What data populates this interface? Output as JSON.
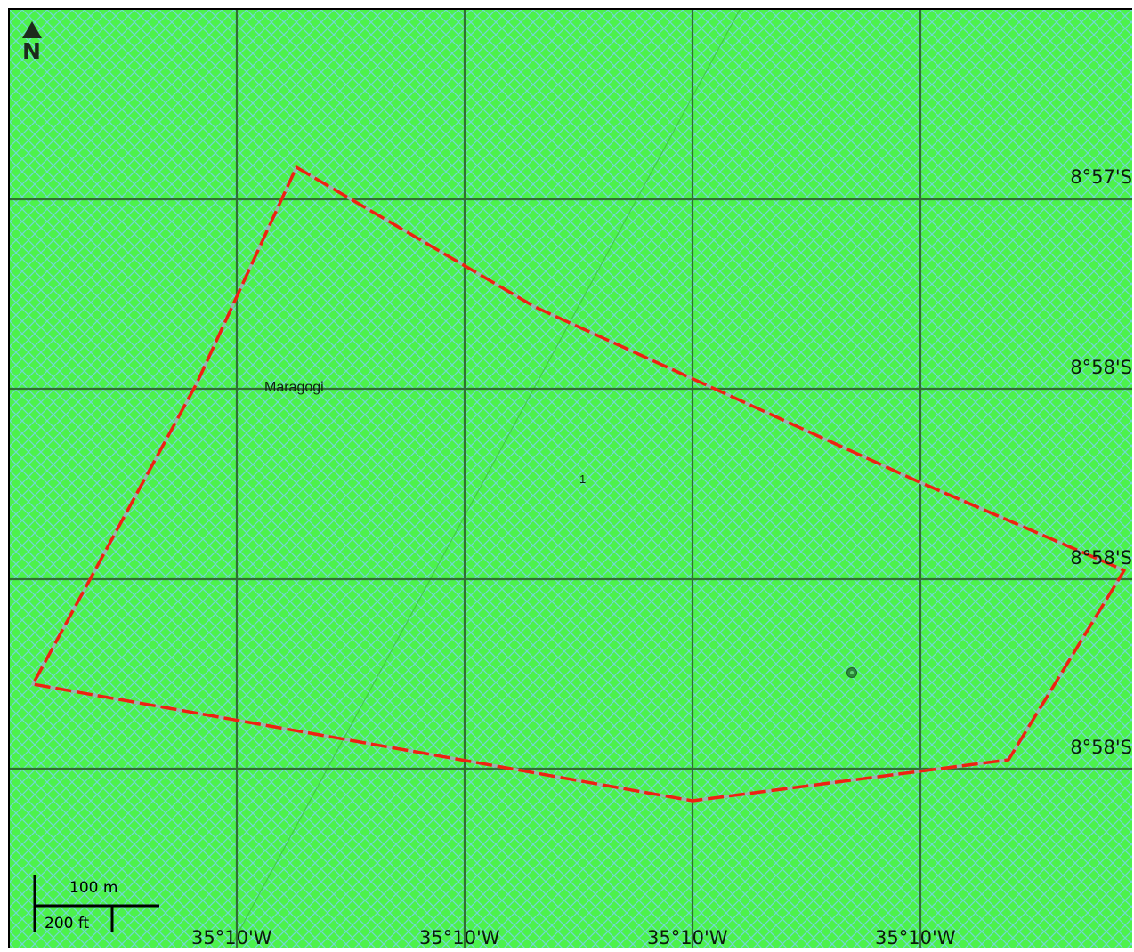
{
  "map": {
    "background_color": "#4cf24c",
    "hatch_color": "#6fd9d0",
    "grid_color": "#2a5a2a",
    "boundary_color": "#ee2211",
    "boundary_dash_color": "#9ab2b2",
    "north_letter": "N",
    "place_label": "Maragogi",
    "feature_label": "1",
    "latitude_labels": [
      "8°57'S",
      "8°58'S",
      "8°58'S",
      "8°58'S"
    ],
    "longitude_labels": [
      "35°10'W",
      "35°10'W",
      "35°10'W",
      "35°10'W"
    ],
    "scale": {
      "metric_label": "100 m",
      "imperial_label": "200 ft"
    }
  }
}
